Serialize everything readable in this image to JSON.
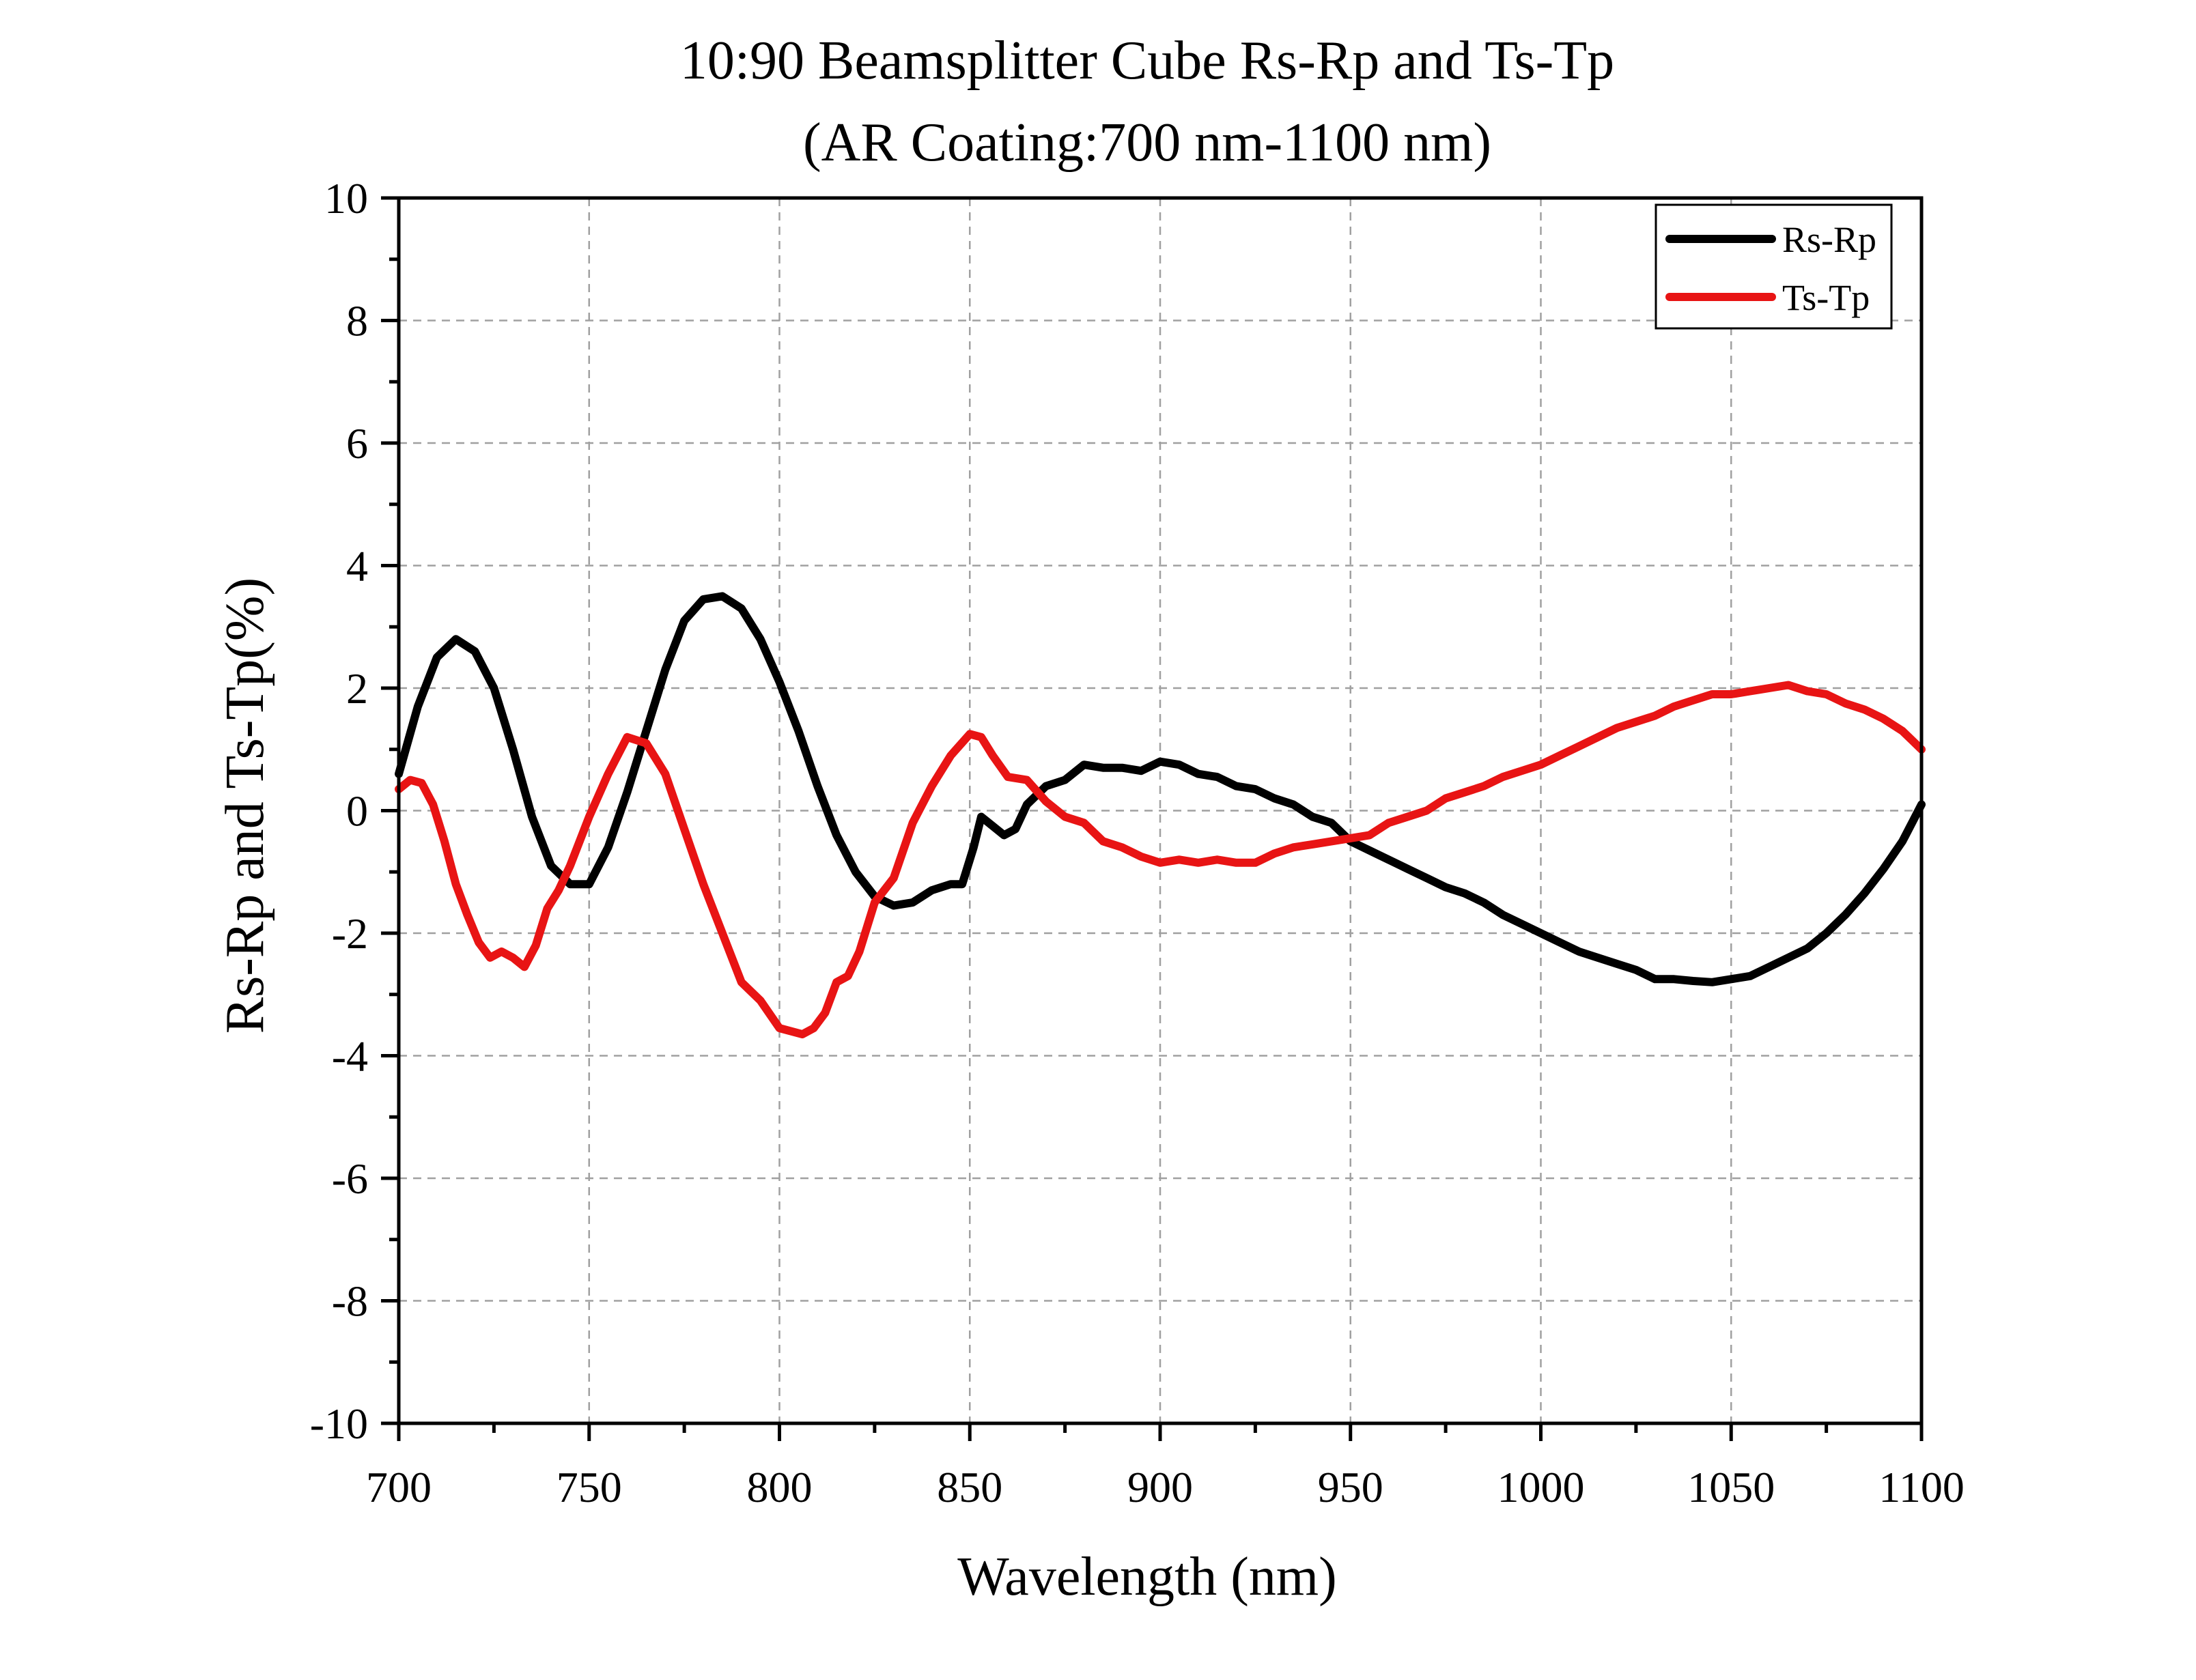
{
  "chart_data": {
    "type": "line",
    "title": "10:90 Beamsplitter Cube Rs-Rp and Ts-Tp",
    "subtitle": "(AR Coating:700 nm-1100 nm)",
    "xlabel": "Wavelength (nm)",
    "ylabel": "Rs-Rp and Ts-Tp(%)",
    "xlim": [
      700,
      1100
    ],
    "ylim": [
      -10,
      10
    ],
    "xticks": [
      700,
      750,
      800,
      850,
      900,
      950,
      1000,
      1050,
      1100
    ],
    "xtick_labels": [
      "700",
      "750",
      "800",
      "850",
      "900",
      "950",
      "1000",
      "1050",
      "1100"
    ],
    "yticks": [
      -10,
      -8,
      -6,
      -4,
      -2,
      0,
      2,
      4,
      6,
      8,
      10
    ],
    "ytick_labels": [
      "-10",
      "-8",
      "-6",
      "-4",
      "-2",
      "0",
      "2",
      "4",
      "6",
      "8",
      "10"
    ],
    "grid": true,
    "legend_position": "top-right",
    "series": [
      {
        "name": "Rs-Rp",
        "color": "#000000",
        "x": [
          700,
          705,
          710,
          715,
          720,
          725,
          730,
          735,
          740,
          745,
          750,
          755,
          760,
          765,
          770,
          775,
          780,
          785,
          790,
          795,
          800,
          805,
          810,
          815,
          820,
          825,
          830,
          835,
          840,
          845,
          848,
          851,
          853,
          856,
          859,
          862,
          865,
          870,
          875,
          880,
          885,
          890,
          895,
          900,
          905,
          910,
          915,
          920,
          925,
          930,
          935,
          940,
          945,
          950,
          955,
          960,
          965,
          970,
          975,
          980,
          985,
          990,
          995,
          1000,
          1005,
          1010,
          1015,
          1020,
          1025,
          1030,
          1035,
          1040,
          1045,
          1050,
          1055,
          1060,
          1065,
          1070,
          1075,
          1080,
          1085,
          1090,
          1095,
          1100
        ],
        "values": [
          0.6,
          1.7,
          2.5,
          2.8,
          2.6,
          2.0,
          1.0,
          -0.1,
          -0.9,
          -1.2,
          -1.2,
          -0.6,
          0.3,
          1.3,
          2.3,
          3.1,
          3.45,
          3.5,
          3.3,
          2.8,
          2.1,
          1.3,
          0.4,
          -0.4,
          -1.0,
          -1.4,
          -1.55,
          -1.5,
          -1.3,
          -1.2,
          -1.2,
          -0.6,
          -0.1,
          -0.25,
          -0.4,
          -0.3,
          0.1,
          0.4,
          0.5,
          0.75,
          0.7,
          0.7,
          0.65,
          0.8,
          0.75,
          0.6,
          0.55,
          0.4,
          0.35,
          0.2,
          0.1,
          -0.1,
          -0.2,
          -0.5,
          -0.65,
          -0.8,
          -0.95,
          -1.1,
          -1.25,
          -1.35,
          -1.5,
          -1.7,
          -1.85,
          -2.0,
          -2.15,
          -2.3,
          -2.4,
          -2.5,
          -2.6,
          -2.75,
          -2.75,
          -2.78,
          -2.8,
          -2.75,
          -2.7,
          -2.55,
          -2.4,
          -2.25,
          -2.0,
          -1.7,
          -1.35,
          -0.95,
          -0.5,
          0.1
        ]
      },
      {
        "name": "Ts-Tp",
        "color": "#e81414",
        "x": [
          700,
          703,
          706,
          709,
          712,
          715,
          718,
          721,
          724,
          727,
          730,
          733,
          736,
          739,
          742,
          745,
          750,
          755,
          760,
          765,
          770,
          775,
          780,
          785,
          790,
          795,
          800,
          803,
          806,
          809,
          812,
          815,
          818,
          821,
          825,
          830,
          835,
          840,
          845,
          850,
          853,
          856,
          860,
          865,
          870,
          875,
          880,
          885,
          890,
          895,
          900,
          905,
          910,
          915,
          920,
          925,
          930,
          935,
          940,
          945,
          950,
          955,
          960,
          965,
          970,
          975,
          980,
          985,
          990,
          995,
          1000,
          1005,
          1010,
          1015,
          1020,
          1025,
          1030,
          1035,
          1040,
          1045,
          1050,
          1055,
          1060,
          1065,
          1070,
          1075,
          1080,
          1085,
          1090,
          1095,
          1100
        ],
        "values": [
          0.35,
          0.5,
          0.45,
          0.1,
          -0.5,
          -1.2,
          -1.7,
          -2.15,
          -2.4,
          -2.3,
          -2.4,
          -2.55,
          -2.2,
          -1.6,
          -1.3,
          -0.9,
          -0.1,
          0.6,
          1.2,
          1.1,
          0.6,
          -0.3,
          -1.2,
          -2.0,
          -2.8,
          -3.1,
          -3.55,
          -3.6,
          -3.65,
          -3.55,
          -3.3,
          -2.8,
          -2.7,
          -2.3,
          -1.5,
          -1.1,
          -0.2,
          0.4,
          0.9,
          1.25,
          1.2,
          0.9,
          0.55,
          0.5,
          0.15,
          -0.1,
          -0.2,
          -0.5,
          -0.6,
          -0.75,
          -0.85,
          -0.8,
          -0.85,
          -0.8,
          -0.85,
          -0.85,
          -0.7,
          -0.6,
          -0.55,
          -0.5,
          -0.45,
          -0.4,
          -0.2,
          -0.1,
          0.0,
          0.2,
          0.3,
          0.4,
          0.55,
          0.65,
          0.75,
          0.9,
          1.05,
          1.2,
          1.35,
          1.45,
          1.55,
          1.7,
          1.8,
          1.9,
          1.9,
          1.95,
          2.0,
          2.05,
          1.95,
          1.9,
          1.75,
          1.65,
          1.5,
          1.3,
          1.0
        ]
      }
    ]
  }
}
